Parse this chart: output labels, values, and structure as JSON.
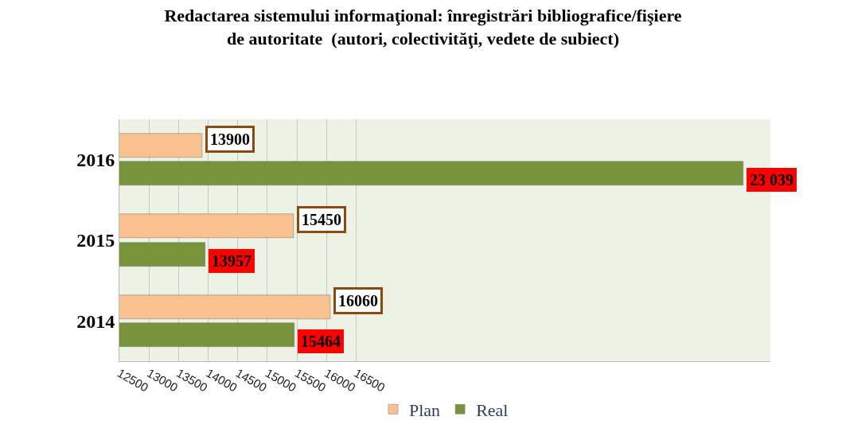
{
  "chart_data": {
    "type": "bar",
    "orientation": "horizontal",
    "title": "Redactarea sistemului informaţional: înregistrări bibliografice/fişiere\nde autoritate  (autori, colectivităţi, vedete de subiect)",
    "categories": [
      "2016",
      "2015",
      "2014"
    ],
    "series": [
      {
        "name": "Plan",
        "color": "#f8c18f",
        "values": [
          13900,
          15450,
          16060
        ],
        "value_labels": [
          "13900",
          "15450",
          "16060"
        ]
      },
      {
        "name": "Real",
        "color": "#77933c",
        "values": [
          23039,
          13957,
          15464
        ],
        "value_labels": [
          "23 039",
          "13957",
          "15464"
        ]
      }
    ],
    "xlim": [
      12500,
      23500
    ],
    "xticks": [
      12500,
      13000,
      13500,
      14000,
      14500,
      15000,
      15500,
      16000,
      16500
    ],
    "grid": "x",
    "legend": "bottom"
  }
}
